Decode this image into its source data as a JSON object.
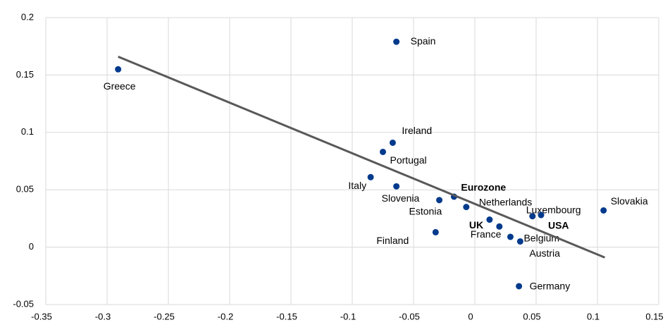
{
  "chart_data": {
    "type": "scatter",
    "labels": [
      "Greece",
      "Spain",
      "Ireland",
      "Portugal",
      "Italy",
      "Slovenia",
      "Eurozone",
      "Estonia",
      "Netherlands",
      "UK",
      "France",
      "Luxembourg",
      "USA",
      "Belgium",
      "Austria",
      "Finland",
      "Germany",
      "Slovakia"
    ],
    "x": [
      -0.291,
      -0.064,
      -0.067,
      -0.075,
      -0.085,
      -0.064,
      -0.017,
      -0.029,
      -0.007,
      0.012,
      0.02,
      0.047,
      0.054,
      0.029,
      0.037,
      -0.032,
      0.036,
      0.105
    ],
    "y": [
      0.155,
      0.179,
      0.091,
      0.083,
      0.061,
      0.053,
      0.044,
      0.041,
      0.035,
      0.024,
      0.018,
      0.027,
      0.028,
      0.009,
      0.005,
      0.013,
      -0.034,
      0.032
    ],
    "bold": [
      false,
      false,
      false,
      false,
      false,
      false,
      true,
      false,
      false,
      true,
      false,
      false,
      true,
      false,
      false,
      false,
      false,
      false
    ],
    "color": "#003a8c",
    "trendline": {
      "x": [
        -0.291,
        0.106
      ],
      "y": [
        0.166,
        -0.009
      ],
      "color": "#595959"
    },
    "xlim": [
      -0.35,
      0.15
    ],
    "xticks": [
      -0.35,
      -0.3,
      -0.25,
      -0.2,
      -0.15,
      -0.1,
      -0.05,
      0,
      0.05,
      0.1,
      0.15
    ],
    "ylim": [
      -0.05,
      0.2
    ],
    "yticks": [
      -0.05,
      0,
      0.05,
      0.1,
      0.15,
      0.2
    ],
    "grid": true
  }
}
